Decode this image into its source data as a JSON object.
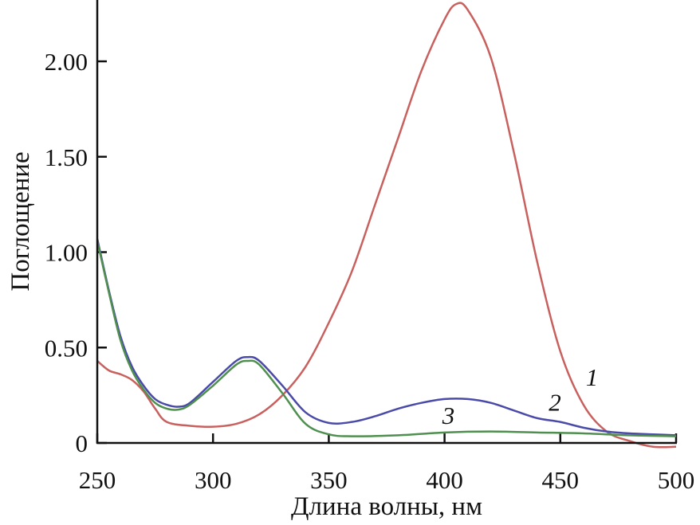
{
  "chart_data": {
    "type": "line",
    "title": "",
    "xlabel": "Длина волны, нм",
    "ylabel": "Поглощение",
    "xlim": [
      250,
      500
    ],
    "ylim": [
      0,
      2.3
    ],
    "grid": false,
    "xticks": [
      250,
      300,
      350,
      400,
      450,
      500
    ],
    "xtick_labels": [
      "250",
      "300",
      "350",
      "400",
      "450",
      "500"
    ],
    "yticks": [
      0,
      0.5,
      1.0,
      1.5,
      2.0
    ],
    "ytick_labels": [
      "0",
      "0.50",
      "1.00",
      "1.50",
      "2.00"
    ],
    "series": [
      {
        "label": "1",
        "color": "#c8605e",
        "label_at": [
          461,
          0.3
        ],
        "x": [
          250,
          255,
          260,
          265,
          270,
          275,
          280,
          290,
          300,
          310,
          320,
          330,
          340,
          350,
          360,
          370,
          380,
          390,
          400,
          405,
          410,
          420,
          430,
          440,
          450,
          460,
          470,
          480,
          490,
          500
        ],
        "y": [
          0.43,
          0.38,
          0.36,
          0.33,
          0.27,
          0.18,
          0.11,
          0.09,
          0.085,
          0.1,
          0.15,
          0.25,
          0.4,
          0.63,
          0.9,
          1.25,
          1.6,
          1.95,
          2.22,
          2.3,
          2.27,
          2.02,
          1.52,
          0.95,
          0.48,
          0.2,
          0.06,
          0.01,
          -0.02,
          -0.02
        ]
      },
      {
        "label": "2",
        "color": "#4a4aa8",
        "label_at": [
          445,
          0.17
        ],
        "x": [
          250,
          255,
          260,
          265,
          270,
          275,
          280,
          285,
          290,
          300,
          310,
          315,
          320,
          330,
          340,
          350,
          360,
          370,
          380,
          390,
          400,
          410,
          420,
          430,
          440,
          450,
          460,
          470,
          480,
          490,
          500
        ],
        "y": [
          1.07,
          0.8,
          0.56,
          0.4,
          0.3,
          0.23,
          0.2,
          0.19,
          0.21,
          0.32,
          0.43,
          0.45,
          0.43,
          0.3,
          0.16,
          0.105,
          0.11,
          0.14,
          0.18,
          0.21,
          0.23,
          0.23,
          0.21,
          0.17,
          0.13,
          0.11,
          0.08,
          0.06,
          0.05,
          0.045,
          0.04
        ]
      },
      {
        "label": "3",
        "color": "#4f8f4f",
        "label_at": [
          399,
          0.1
        ],
        "x": [
          250,
          255,
          260,
          265,
          270,
          275,
          280,
          285,
          290,
          300,
          310,
          315,
          320,
          330,
          340,
          350,
          360,
          380,
          400,
          420,
          440,
          460,
          480,
          500
        ],
        "y": [
          1.06,
          0.79,
          0.54,
          0.38,
          0.28,
          0.21,
          0.18,
          0.175,
          0.2,
          0.3,
          0.41,
          0.43,
          0.41,
          0.26,
          0.1,
          0.045,
          0.035,
          0.04,
          0.055,
          0.06,
          0.055,
          0.05,
          0.04,
          0.035
        ]
      }
    ]
  }
}
